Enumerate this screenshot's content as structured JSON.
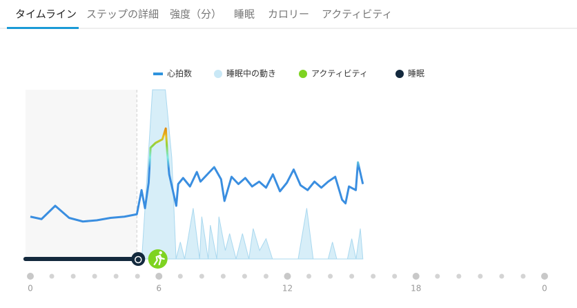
{
  "tabs": [
    "タイムライン",
    "ステップの詳細",
    "強度（分）",
    "睡眠",
    "カロリー",
    "アクティビティ"
  ],
  "active_tab": 0,
  "chart_data": {
    "type": "line",
    "xlim": [
      0,
      24
    ],
    "xticks": [
      0,
      6,
      12,
      18,
      {
        "value": 24,
        "label": "0"
      }
    ],
    "xtick_dots": [
      0,
      1,
      2,
      3,
      4,
      5,
      6,
      7,
      8,
      9,
      10,
      11,
      12,
      13,
      14,
      15,
      16,
      17,
      18,
      19,
      20,
      21,
      22,
      23,
      24
    ],
    "ylim": [
      40,
      180
    ],
    "y2lim": [
      0,
      100
    ],
    "series": [
      {
        "name": "心拍数",
        "color": "#2f93dd",
        "color_scale": [
          {
            "value": 115,
            "color": "#3a8ee0"
          },
          {
            "value": 124,
            "color": "#7de8e0"
          },
          {
            "value": 134,
            "color": "#8ed33a"
          },
          {
            "value": 141,
            "color": "#e8c020"
          },
          {
            "value": 148,
            "color": "#e08a10"
          }
        ],
        "x": [
          0,
          0.52,
          1.16,
          1.81,
          2.45,
          3.1,
          3.74,
          4.39,
          4.97,
          5.19,
          5.35,
          5.52,
          5.61,
          5.84,
          6.16,
          6.32,
          6.39,
          6.48,
          6.81,
          6.9,
          7.13,
          7.45,
          7.77,
          7.94,
          8.26,
          8.58,
          8.9,
          9.06,
          9.39,
          9.71,
          10.03,
          10.35,
          10.68,
          11,
          11.32,
          11.65,
          11.97,
          12.29,
          12.61,
          12.94,
          13.26,
          13.58,
          13.9,
          14.23,
          14.55,
          14.71,
          14.87,
          15.19,
          15.29,
          15.52
        ],
        "values": [
          75,
          73,
          84,
          74,
          71,
          72,
          74,
          75,
          77,
          97,
          82,
          103,
          132,
          136,
          139,
          148,
          128,
          110,
          84,
          102,
          107,
          100,
          112,
          104,
          110,
          116,
          106,
          88,
          108,
          102,
          107,
          100,
          104,
          99,
          110,
          96,
          103,
          114,
          101,
          97,
          104,
          99,
          104,
          108,
          89,
          86,
          100,
          97,
          120,
          102
        ]
      },
      {
        "name": "睡眠中の動き",
        "color": "#c9e8f6",
        "axis": "y2",
        "x": [
          5.2,
          5.5,
          5.7,
          6.3,
          6.6,
          6.8,
          7.0,
          7.2,
          7.6,
          7.9,
          8.0,
          8.3,
          8.4,
          8.7,
          8.8,
          9.1,
          9.3,
          9.6,
          9.9,
          10.2,
          10.4,
          10.7,
          11.0,
          11.3,
          12.5,
          12.9,
          13.2,
          13.9,
          14.1,
          14.3,
          14.8,
          15.0,
          15.2,
          15.4,
          15.52
        ],
        "values": [
          0,
          60,
          100,
          100,
          60,
          0,
          10,
          0,
          30,
          0,
          25,
          0,
          20,
          0,
          25,
          5,
          15,
          0,
          15,
          0,
          18,
          5,
          12,
          0,
          0,
          30,
          0,
          0,
          10,
          0,
          0,
          12,
          0,
          18,
          0
        ]
      }
    ],
    "activity": {
      "name": "アクティビティ",
      "color": "#7ed321",
      "x": 5.95
    },
    "sleep": {
      "name": "睡眠",
      "color": "#13293d",
      "start": -0.23,
      "end": 4.97
    }
  }
}
